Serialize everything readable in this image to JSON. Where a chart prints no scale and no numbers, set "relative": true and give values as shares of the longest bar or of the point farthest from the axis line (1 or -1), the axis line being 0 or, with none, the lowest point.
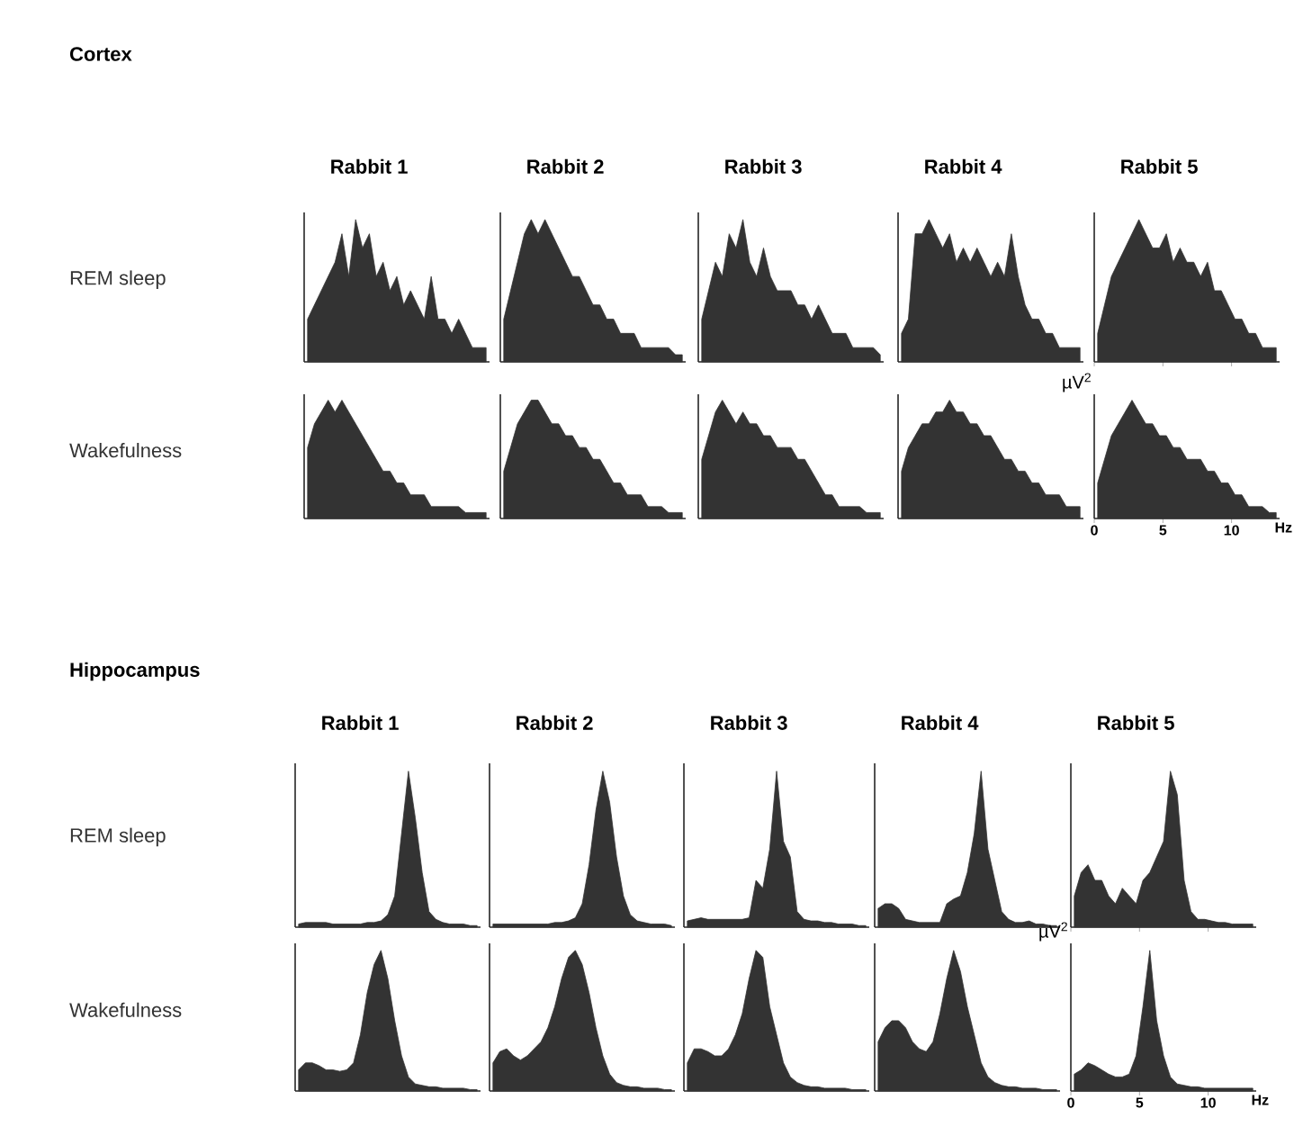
{
  "chart_data": [
    {
      "type": "area",
      "relative": true,
      "title": "Rabbit 1",
      "ylabel": "REM sleep",
      "annotations": [
        "Cortex"
      ],
      "color": "#333333",
      "categories": [
        null,
        null,
        null,
        null,
        null,
        null,
        null,
        null,
        null,
        null,
        null,
        null,
        null,
        null,
        null,
        null,
        null,
        null,
        null,
        null,
        null,
        null,
        null,
        null,
        null,
        null,
        null
      ],
      "values": [
        0.3,
        0.4,
        0.5,
        0.6,
        0.7,
        0.9,
        0.6,
        1.0,
        0.8,
        0.9,
        0.6,
        0.7,
        0.5,
        0.6,
        0.4,
        0.5,
        0.4,
        0.3,
        0.6,
        0.3,
        0.3,
        0.2,
        0.3,
        0.2,
        0.1,
        0.1,
        0.1
      ]
    },
    {
      "type": "area",
      "relative": true,
      "title": "Rabbit 2",
      "color": "#333333",
      "categories": [
        null,
        null,
        null,
        null,
        null,
        null,
        null,
        null,
        null,
        null,
        null,
        null,
        null,
        null,
        null,
        null,
        null,
        null,
        null,
        null,
        null,
        null,
        null,
        null,
        null,
        null,
        null
      ],
      "values": [
        0.3,
        0.5,
        0.7,
        0.9,
        1.0,
        0.9,
        1.0,
        0.9,
        0.8,
        0.7,
        0.6,
        0.6,
        0.5,
        0.4,
        0.4,
        0.3,
        0.3,
        0.2,
        0.2,
        0.2,
        0.1,
        0.1,
        0.1,
        0.1,
        0.1,
        0.05,
        0.05
      ]
    },
    {
      "type": "area",
      "relative": true,
      "title": "Rabbit 3",
      "color": "#333333",
      "categories": [
        null,
        null,
        null,
        null,
        null,
        null,
        null,
        null,
        null,
        null,
        null,
        null,
        null,
        null,
        null,
        null,
        null,
        null,
        null,
        null,
        null,
        null,
        null,
        null,
        null,
        null,
        null
      ],
      "values": [
        0.3,
        0.5,
        0.7,
        0.6,
        0.9,
        0.8,
        1.0,
        0.7,
        0.6,
        0.8,
        0.6,
        0.5,
        0.5,
        0.5,
        0.4,
        0.4,
        0.3,
        0.4,
        0.3,
        0.2,
        0.2,
        0.2,
        0.1,
        0.1,
        0.1,
        0.1,
        0.05
      ]
    },
    {
      "type": "area",
      "relative": true,
      "title": "Rabbit 4",
      "color": "#333333",
      "categories": [
        null,
        null,
        null,
        null,
        null,
        null,
        null,
        null,
        null,
        null,
        null,
        null,
        null,
        null,
        null,
        null,
        null,
        null,
        null,
        null,
        null,
        null,
        null,
        null,
        null,
        null,
        null
      ],
      "values": [
        0.2,
        0.3,
        0.9,
        0.9,
        1.0,
        0.9,
        0.8,
        0.9,
        0.7,
        0.8,
        0.7,
        0.8,
        0.7,
        0.6,
        0.7,
        0.6,
        0.9,
        0.6,
        0.4,
        0.3,
        0.3,
        0.2,
        0.2,
        0.1,
        0.1,
        0.1,
        0.1
      ]
    },
    {
      "type": "area",
      "relative": true,
      "title": "Rabbit 5",
      "color": "#333333",
      "xlim": [
        0,
        13.5
      ],
      "xticks": [
        0,
        5,
        10
      ],
      "tick_labels": false,
      "x": [
        0.25,
        0.75,
        1.25,
        1.75,
        2.25,
        2.75,
        3.25,
        3.75,
        4.25,
        4.75,
        5.25,
        5.75,
        6.25,
        6.75,
        7.25,
        7.75,
        8.25,
        8.75,
        9.25,
        9.75,
        10.25,
        10.75,
        11.25,
        11.75,
        12.25,
        12.75,
        13.25
      ],
      "values": [
        0.2,
        0.4,
        0.6,
        0.7,
        0.8,
        0.9,
        1.0,
        0.9,
        0.8,
        0.8,
        0.9,
        0.7,
        0.8,
        0.7,
        0.7,
        0.6,
        0.7,
        0.5,
        0.5,
        0.4,
        0.3,
        0.3,
        0.2,
        0.2,
        0.1,
        0.1,
        0.1
      ]
    },
    {
      "type": "area",
      "relative": true,
      "ylabel": "Wakefulness",
      "color": "#333333",
      "categories": [
        null,
        null,
        null,
        null,
        null,
        null,
        null,
        null,
        null,
        null,
        null,
        null,
        null,
        null,
        null,
        null,
        null,
        null,
        null,
        null,
        null,
        null,
        null,
        null,
        null,
        null,
        null
      ],
      "values": [
        0.6,
        0.8,
        0.9,
        1.0,
        0.9,
        1.0,
        0.9,
        0.8,
        0.7,
        0.6,
        0.5,
        0.4,
        0.4,
        0.3,
        0.3,
        0.2,
        0.2,
        0.2,
        0.1,
        0.1,
        0.1,
        0.1,
        0.1,
        0.05,
        0.05,
        0.05,
        0.05
      ]
    },
    {
      "type": "area",
      "relative": true,
      "color": "#333333",
      "categories": [
        null,
        null,
        null,
        null,
        null,
        null,
        null,
        null,
        null,
        null,
        null,
        null,
        null,
        null,
        null,
        null,
        null,
        null,
        null,
        null,
        null,
        null,
        null,
        null,
        null,
        null,
        null
      ],
      "values": [
        0.4,
        0.6,
        0.8,
        0.9,
        1.0,
        1.0,
        0.9,
        0.8,
        0.8,
        0.7,
        0.7,
        0.6,
        0.6,
        0.5,
        0.5,
        0.4,
        0.3,
        0.3,
        0.2,
        0.2,
        0.2,
        0.1,
        0.1,
        0.1,
        0.05,
        0.05,
        0.05
      ]
    },
    {
      "type": "area",
      "relative": true,
      "color": "#333333",
      "categories": [
        null,
        null,
        null,
        null,
        null,
        null,
        null,
        null,
        null,
        null,
        null,
        null,
        null,
        null,
        null,
        null,
        null,
        null,
        null,
        null,
        null,
        null,
        null,
        null,
        null,
        null,
        null
      ],
      "values": [
        0.5,
        0.7,
        0.9,
        1.0,
        0.9,
        0.8,
        0.9,
        0.8,
        0.8,
        0.7,
        0.7,
        0.6,
        0.6,
        0.6,
        0.5,
        0.5,
        0.4,
        0.3,
        0.2,
        0.2,
        0.1,
        0.1,
        0.1,
        0.1,
        0.05,
        0.05,
        0.05
      ]
    },
    {
      "type": "area",
      "relative": true,
      "color": "#333333",
      "categories": [
        null,
        null,
        null,
        null,
        null,
        null,
        null,
        null,
        null,
        null,
        null,
        null,
        null,
        null,
        null,
        null,
        null,
        null,
        null,
        null,
        null,
        null,
        null,
        null,
        null,
        null,
        null
      ],
      "values": [
        0.4,
        0.6,
        0.7,
        0.8,
        0.8,
        0.9,
        0.9,
        1.0,
        0.9,
        0.9,
        0.8,
        0.8,
        0.7,
        0.7,
        0.6,
        0.5,
        0.5,
        0.4,
        0.4,
        0.3,
        0.3,
        0.2,
        0.2,
        0.2,
        0.1,
        0.1,
        0.1
      ]
    },
    {
      "type": "area",
      "relative": true,
      "ylabel": "µV$^{2}$",
      "xlabel": "Hz",
      "color": "#333333",
      "xlim": [
        0,
        13.5
      ],
      "xticks": [
        0,
        5,
        10
      ],
      "tick_labels": "x",
      "x": [
        0.25,
        0.75,
        1.25,
        1.75,
        2.25,
        2.75,
        3.25,
        3.75,
        4.25,
        4.75,
        5.25,
        5.75,
        6.25,
        6.75,
        7.25,
        7.75,
        8.25,
        8.75,
        9.25,
        9.75,
        10.25,
        10.75,
        11.25,
        11.75,
        12.25,
        12.75,
        13.25
      ],
      "values": [
        0.3,
        0.5,
        0.7,
        0.8,
        0.9,
        1.0,
        0.9,
        0.8,
        0.8,
        0.7,
        0.7,
        0.6,
        0.6,
        0.5,
        0.5,
        0.5,
        0.4,
        0.4,
        0.3,
        0.3,
        0.2,
        0.2,
        0.1,
        0.1,
        0.1,
        0.05,
        0.05
      ]
    },
    {
      "type": "area",
      "relative": true,
      "title": "Rabbit 1",
      "ylabel": "REM sleep",
      "annotations": [
        "Hippocampus"
      ],
      "color": "#333333",
      "categories": [
        null,
        null,
        null,
        null,
        null,
        null,
        null,
        null,
        null,
        null,
        null,
        null,
        null,
        null,
        null,
        null,
        null,
        null,
        null,
        null,
        null,
        null,
        null,
        null,
        null,
        null,
        null
      ],
      "values": [
        0.02,
        0.03,
        0.03,
        0.03,
        0.03,
        0.02,
        0.02,
        0.02,
        0.02,
        0.02,
        0.03,
        0.03,
        0.04,
        0.08,
        0.2,
        0.6,
        1.0,
        0.7,
        0.35,
        0.1,
        0.05,
        0.03,
        0.02,
        0.02,
        0.02,
        0.01,
        0.01
      ]
    },
    {
      "type": "area",
      "relative": true,
      "title": "Rabbit 2",
      "color": "#333333",
      "categories": [
        null,
        null,
        null,
        null,
        null,
        null,
        null,
        null,
        null,
        null,
        null,
        null,
        null,
        null,
        null,
        null,
        null,
        null,
        null,
        null,
        null,
        null,
        null,
        null,
        null,
        null,
        null
      ],
      "values": [
        0.02,
        0.02,
        0.02,
        0.02,
        0.02,
        0.02,
        0.02,
        0.02,
        0.02,
        0.03,
        0.03,
        0.04,
        0.06,
        0.15,
        0.4,
        0.75,
        1.0,
        0.8,
        0.45,
        0.2,
        0.08,
        0.04,
        0.03,
        0.02,
        0.02,
        0.02,
        0.01
      ]
    },
    {
      "type": "area",
      "relative": true,
      "title": "Rabbit 3",
      "color": "#333333",
      "categories": [
        null,
        null,
        null,
        null,
        null,
        null,
        null,
        null,
        null,
        null,
        null,
        null,
        null,
        null,
        null,
        null,
        null,
        null,
        null,
        null,
        null,
        null,
        null,
        null,
        null,
        null,
        null
      ],
      "values": [
        0.04,
        0.05,
        0.06,
        0.05,
        0.05,
        0.05,
        0.05,
        0.05,
        0.05,
        0.06,
        0.3,
        0.25,
        0.5,
        1.0,
        0.55,
        0.45,
        0.1,
        0.05,
        0.04,
        0.04,
        0.03,
        0.03,
        0.02,
        0.02,
        0.02,
        0.01,
        0.01
      ]
    },
    {
      "type": "area",
      "relative": true,
      "title": "Rabbit 4",
      "color": "#333333",
      "categories": [
        null,
        null,
        null,
        null,
        null,
        null,
        null,
        null,
        null,
        null,
        null,
        null,
        null,
        null,
        null,
        null,
        null,
        null,
        null,
        null,
        null,
        null,
        null,
        null,
        null,
        null,
        null
      ],
      "values": [
        0.12,
        0.15,
        0.15,
        0.12,
        0.05,
        0.04,
        0.03,
        0.03,
        0.03,
        0.03,
        0.15,
        0.18,
        0.2,
        0.35,
        0.6,
        1.0,
        0.5,
        0.3,
        0.1,
        0.05,
        0.03,
        0.03,
        0.04,
        0.02,
        0.02,
        0.01,
        0.01
      ]
    },
    {
      "type": "area",
      "relative": true,
      "title": "Rabbit 5",
      "color": "#333333",
      "xlim": [
        0,
        13.5
      ],
      "xticks": [
        0,
        5,
        10
      ],
      "tick_labels": false,
      "x": [
        0.25,
        0.75,
        1.25,
        1.75,
        2.25,
        2.75,
        3.25,
        3.75,
        4.25,
        4.75,
        5.25,
        5.75,
        6.25,
        6.75,
        7.25,
        7.75,
        8.25,
        8.75,
        9.25,
        9.75,
        10.25,
        10.75,
        11.25,
        11.75,
        12.25,
        12.75,
        13.25
      ],
      "values": [
        0.2,
        0.35,
        0.4,
        0.3,
        0.3,
        0.2,
        0.15,
        0.25,
        0.2,
        0.15,
        0.3,
        0.35,
        0.45,
        0.55,
        1.0,
        0.85,
        0.3,
        0.1,
        0.05,
        0.05,
        0.04,
        0.03,
        0.03,
        0.02,
        0.02,
        0.02,
        0.02
      ]
    },
    {
      "type": "area",
      "relative": true,
      "ylabel": "Wakefulness",
      "color": "#333333",
      "categories": [
        null,
        null,
        null,
        null,
        null,
        null,
        null,
        null,
        null,
        null,
        null,
        null,
        null,
        null,
        null,
        null,
        null,
        null,
        null,
        null,
        null,
        null,
        null,
        null,
        null,
        null,
        null
      ],
      "values": [
        0.15,
        0.2,
        0.2,
        0.18,
        0.15,
        0.15,
        0.14,
        0.15,
        0.2,
        0.4,
        0.7,
        0.9,
        1.0,
        0.8,
        0.5,
        0.25,
        0.1,
        0.05,
        0.04,
        0.03,
        0.03,
        0.02,
        0.02,
        0.02,
        0.02,
        0.01,
        0.01
      ]
    },
    {
      "type": "area",
      "relative": true,
      "color": "#333333",
      "categories": [
        null,
        null,
        null,
        null,
        null,
        null,
        null,
        null,
        null,
        null,
        null,
        null,
        null,
        null,
        null,
        null,
        null,
        null,
        null,
        null,
        null,
        null,
        null,
        null,
        null,
        null,
        null
      ],
      "values": [
        0.2,
        0.28,
        0.3,
        0.25,
        0.22,
        0.25,
        0.3,
        0.35,
        0.45,
        0.6,
        0.8,
        0.95,
        1.0,
        0.9,
        0.7,
        0.45,
        0.25,
        0.12,
        0.06,
        0.04,
        0.03,
        0.03,
        0.02,
        0.02,
        0.02,
        0.01,
        0.01
      ]
    },
    {
      "type": "area",
      "relative": true,
      "color": "#333333",
      "categories": [
        null,
        null,
        null,
        null,
        null,
        null,
        null,
        null,
        null,
        null,
        null,
        null,
        null,
        null,
        null,
        null,
        null,
        null,
        null,
        null,
        null,
        null,
        null,
        null,
        null,
        null,
        null
      ],
      "values": [
        0.2,
        0.3,
        0.3,
        0.28,
        0.25,
        0.25,
        0.3,
        0.4,
        0.55,
        0.8,
        1.0,
        0.95,
        0.6,
        0.4,
        0.2,
        0.1,
        0.06,
        0.04,
        0.03,
        0.03,
        0.02,
        0.02,
        0.02,
        0.02,
        0.01,
        0.01,
        0.01
      ]
    },
    {
      "type": "area",
      "relative": true,
      "color": "#333333",
      "categories": [
        null,
        null,
        null,
        null,
        null,
        null,
        null,
        null,
        null,
        null,
        null,
        null,
        null,
        null,
        null,
        null,
        null,
        null,
        null,
        null,
        null,
        null,
        null,
        null,
        null,
        null,
        null
      ],
      "values": [
        0.35,
        0.45,
        0.5,
        0.5,
        0.45,
        0.35,
        0.3,
        0.28,
        0.35,
        0.55,
        0.8,
        1.0,
        0.85,
        0.6,
        0.4,
        0.2,
        0.1,
        0.06,
        0.04,
        0.03,
        0.03,
        0.02,
        0.02,
        0.02,
        0.01,
        0.01,
        0.01
      ]
    },
    {
      "type": "area",
      "relative": true,
      "ylabel": "µV$^{2}$",
      "xlabel": "Hz",
      "color": "#333333",
      "xlim": [
        0,
        13.5
      ],
      "xticks": [
        0,
        5,
        10
      ],
      "tick_labels": "x",
      "x": [
        0.25,
        0.75,
        1.25,
        1.75,
        2.25,
        2.75,
        3.25,
        3.75,
        4.25,
        4.75,
        5.25,
        5.75,
        6.25,
        6.75,
        7.25,
        7.75,
        8.25,
        8.75,
        9.25,
        9.75,
        10.25,
        10.75,
        11.25,
        11.75,
        12.25,
        12.75,
        13.25
      ],
      "values": [
        0.12,
        0.15,
        0.2,
        0.18,
        0.15,
        0.12,
        0.1,
        0.1,
        0.12,
        0.25,
        0.6,
        1.0,
        0.5,
        0.25,
        0.1,
        0.05,
        0.04,
        0.03,
        0.03,
        0.02,
        0.02,
        0.02,
        0.02,
        0.02,
        0.02,
        0.02,
        0.02
      ]
    }
  ]
}
